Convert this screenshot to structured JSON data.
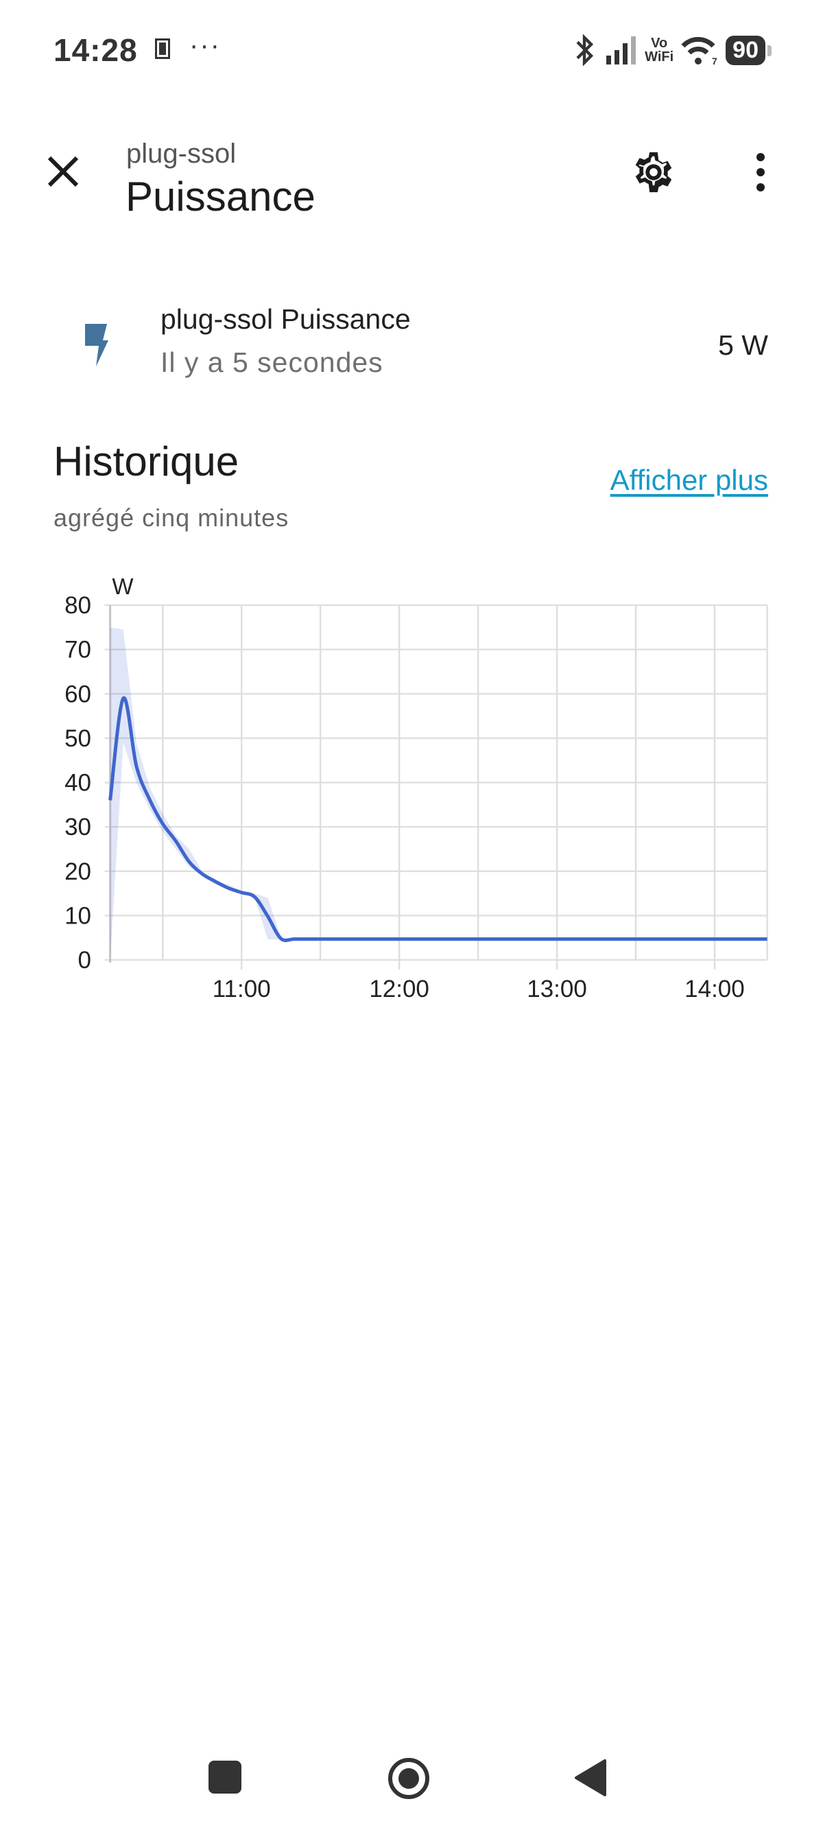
{
  "status_bar": {
    "time": "14:28",
    "overflow": "···",
    "vowifi_top": "Vo",
    "vowifi_bottom": "WiFi",
    "wifi_label": "7",
    "battery": "90"
  },
  "header": {
    "subtitle": "plug-ssol",
    "title": "Puissance",
    "icons": [
      "close-icon",
      "gear-icon",
      "more-vert-icon"
    ]
  },
  "entity": {
    "name": "plug-ssol Puissance",
    "last_changed": "Il y a 5 secondes",
    "state": "5 W",
    "icon": "flash-icon",
    "icon_color": "#44739e"
  },
  "history": {
    "title": "Historique",
    "more_link": "Afficher plus",
    "subtitle": "agrégé cinq minutes",
    "link_color": "#149ac8"
  },
  "chart_data": {
    "type": "line",
    "ylabel": "W",
    "ylim": [
      0,
      80
    ],
    "yticks": [
      "0",
      "10",
      "20",
      "30",
      "40",
      "50",
      "60",
      "70",
      "80"
    ],
    "xlim": [
      "10:10",
      "14:20"
    ],
    "xticks": [
      "11:00",
      "12:00",
      "13:00",
      "14:00"
    ],
    "grid": true,
    "line_color": "#3f66cc",
    "band_color": "#3f66cc",
    "x": [
      "10:10",
      "10:15",
      "10:20",
      "10:25",
      "10:30",
      "10:35",
      "10:40",
      "10:45",
      "10:50",
      "10:55",
      "11:00",
      "11:05",
      "11:10",
      "11:15",
      "11:20",
      "11:25",
      "11:30",
      "11:35",
      "11:40",
      "11:45",
      "11:50",
      "11:55",
      "12:00",
      "12:05",
      "12:10",
      "12:15",
      "12:20",
      "12:25",
      "12:30",
      "12:35",
      "12:40",
      "12:45",
      "12:50",
      "12:55",
      "13:00",
      "13:05",
      "13:10",
      "13:15",
      "13:20",
      "13:25",
      "13:30",
      "13:35",
      "13:40",
      "13:45",
      "13:50",
      "13:55",
      "14:00",
      "14:05",
      "14:10",
      "14:15",
      "14:20"
    ],
    "series": [
      {
        "values": [
          36,
          59,
          43.7,
          36.2,
          30.7,
          26.8,
          22.2,
          19.4,
          17.7,
          16.2,
          15.2,
          14.2,
          9.8,
          4.8,
          4.7,
          4.7,
          4.7,
          4.7,
          4.7,
          4.7,
          4.7,
          4.7,
          4.7,
          4.7,
          4.7,
          4.7,
          4.7,
          4.7,
          4.7,
          4.7,
          4.7,
          4.7,
          4.7,
          4.7,
          4.7,
          4.7,
          4.7,
          4.7,
          4.7,
          4.7,
          4.7,
          4.7,
          4.7,
          4.7,
          4.7,
          4.7,
          4.7,
          4.7,
          4.7,
          4.7,
          4.7
        ],
        "max": [
          75,
          74.5,
          49,
          39,
          33,
          28,
          25,
          20,
          18,
          17,
          15.5,
          15,
          14,
          5,
          4.9,
          4.9,
          4.9,
          4.9,
          4.9,
          4.9,
          4.9,
          4.9,
          4.9,
          4.9,
          4.9,
          4.9,
          4.9,
          4.9,
          4.9,
          4.9,
          4.9,
          4.9,
          4.9,
          4.9,
          4.9,
          4.9,
          4.9,
          4.9,
          4.9,
          4.9,
          4.9,
          4.9,
          4.9,
          4.9,
          4.9,
          4.9,
          4.9,
          4.9,
          4.9,
          4.9,
          4.9
        ],
        "min": [
          0,
          49,
          40,
          34,
          29,
          25,
          21,
          19,
          17,
          16,
          15,
          14,
          4.6,
          4.6,
          4.6,
          4.6,
          4.6,
          4.6,
          4.6,
          4.6,
          4.6,
          4.6,
          4.6,
          4.6,
          4.6,
          4.6,
          4.6,
          4.6,
          4.6,
          4.6,
          4.6,
          4.6,
          4.6,
          4.6,
          4.6,
          4.6,
          4.6,
          4.6,
          4.6,
          4.6,
          4.6,
          4.6,
          4.6,
          4.6,
          4.6,
          4.6,
          4.6,
          4.6,
          4.6,
          4.6,
          4.6
        ]
      }
    ]
  },
  "nav_bar": {
    "icons": [
      "recents-square-icon",
      "home-circle-icon",
      "back-triangle-icon"
    ]
  }
}
